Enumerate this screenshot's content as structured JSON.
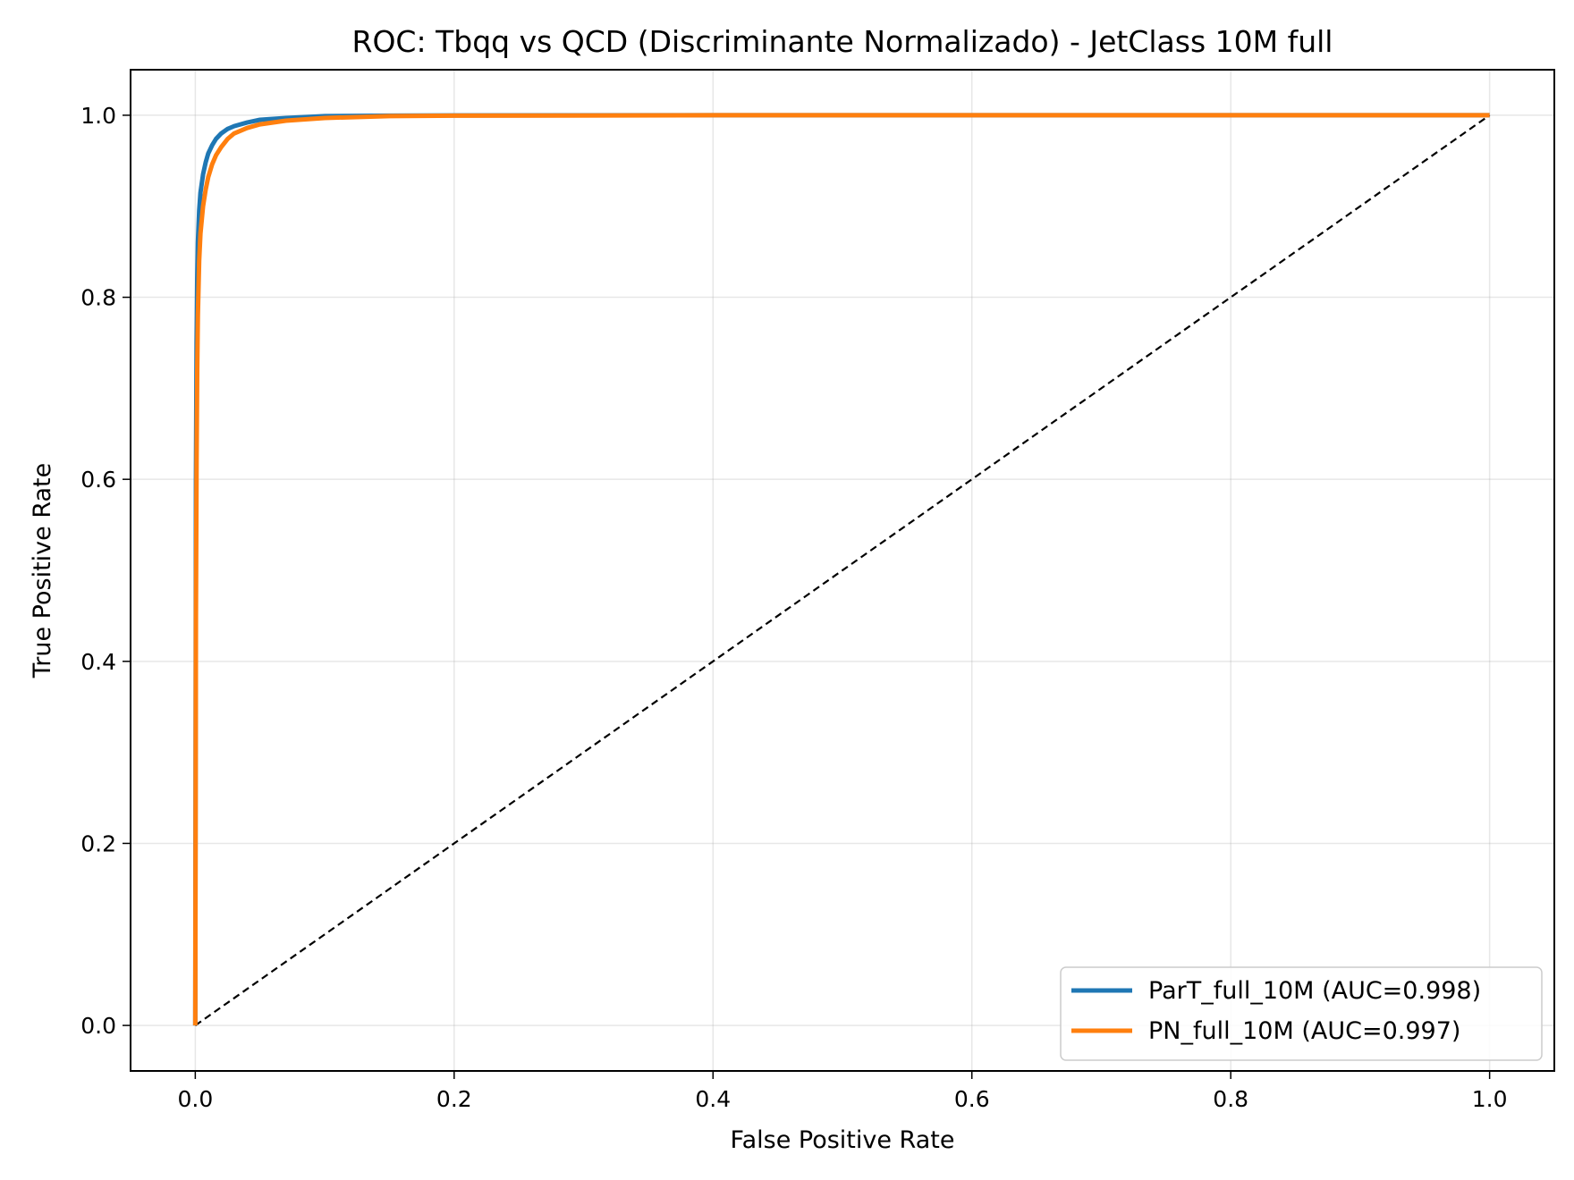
{
  "chart_data": {
    "type": "line",
    "title": "ROC: Tbqq vs QCD (Discriminante Normalizado) - JetClass 10M full",
    "xlabel": "False Positive Rate",
    "ylabel": "True Positive Rate",
    "xlim": [
      -0.05,
      1.05
    ],
    "ylim": [
      -0.05,
      1.05
    ],
    "xticks": [
      0.0,
      0.2,
      0.4,
      0.6,
      0.8,
      1.0
    ],
    "yticks": [
      0.0,
      0.2,
      0.4,
      0.6,
      0.8,
      1.0
    ],
    "xtick_labels": [
      "0.0",
      "0.2",
      "0.4",
      "0.6",
      "0.8",
      "1.0"
    ],
    "ytick_labels": [
      "0.0",
      "0.2",
      "0.4",
      "0.6",
      "0.8",
      "1.0"
    ],
    "grid": true,
    "legend_position": "bottom-right",
    "series": [
      {
        "name": "ParT_full_10M (AUC=0.998)",
        "color": "#1f77b4",
        "x": [
          0,
          0.0005,
          0.001,
          0.0015,
          0.002,
          0.003,
          0.004,
          0.006,
          0.008,
          0.01,
          0.013,
          0.016,
          0.02,
          0.025,
          0.03,
          0.04,
          0.05,
          0.07,
          0.1,
          0.15,
          0.2,
          0.4,
          0.6,
          0.8,
          1.0
        ],
        "y": [
          0,
          0.6,
          0.75,
          0.82,
          0.86,
          0.895,
          0.915,
          0.935,
          0.948,
          0.958,
          0.967,
          0.974,
          0.98,
          0.985,
          0.988,
          0.992,
          0.995,
          0.997,
          0.999,
          0.9995,
          0.9998,
          1.0,
          1.0,
          1.0,
          1.0
        ]
      },
      {
        "name": "PN_full_10M (AUC=0.997)",
        "color": "#ff7f0e",
        "x": [
          0,
          0.0005,
          0.001,
          0.0015,
          0.002,
          0.003,
          0.004,
          0.006,
          0.008,
          0.01,
          0.013,
          0.016,
          0.02,
          0.025,
          0.03,
          0.04,
          0.05,
          0.07,
          0.1,
          0.15,
          0.2,
          0.4,
          0.6,
          0.8,
          1.0
        ],
        "y": [
          0,
          0.45,
          0.62,
          0.72,
          0.78,
          0.84,
          0.87,
          0.9,
          0.918,
          0.932,
          0.946,
          0.956,
          0.965,
          0.974,
          0.98,
          0.986,
          0.99,
          0.994,
          0.997,
          0.999,
          0.9995,
          1.0,
          1.0,
          1.0,
          1.0
        ]
      },
      {
        "name": "",
        "color": "#000000",
        "style": "dashed",
        "x": [
          0,
          1
        ],
        "y": [
          0,
          1
        ]
      }
    ]
  }
}
